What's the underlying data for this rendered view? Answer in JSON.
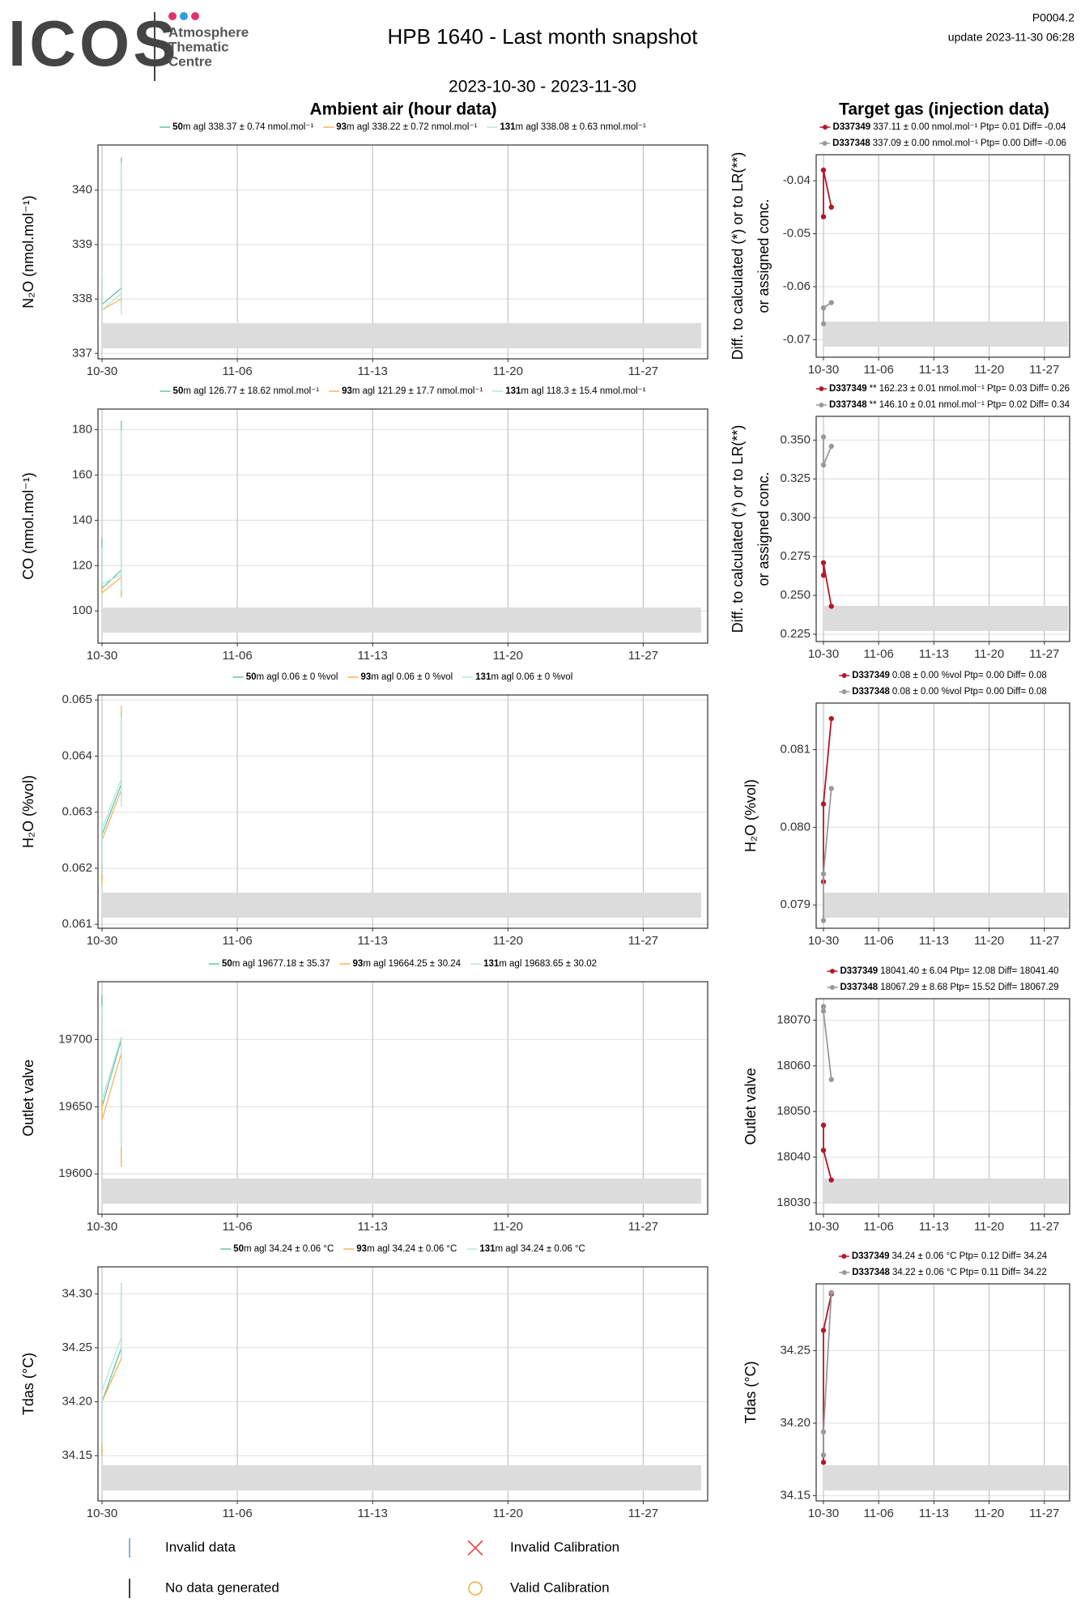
{
  "header": {
    "logo": "ICOS",
    "logo_sub": [
      "Atmosphere",
      "Thematic",
      "Centre"
    ],
    "title": "HPB 1640 - Last month snapshot",
    "code": "P0004.2",
    "update": "update  2023-11-30 06:28",
    "period": "2023-10-30 - 2023-11-30",
    "left_title": "Ambient air (hour data)",
    "right_title": "Target gas (injection data)"
  },
  "chart_data": [
    {
      "type": "line",
      "ylabel": "N₂O (nmol.mol⁻¹)",
      "legend": "top",
      "grid": true,
      "markers": false,
      "xlim": [
        "10-30",
        "11-30"
      ],
      "xticks": [
        "10-30",
        "11-06",
        "11-13",
        "11-20",
        "11-27"
      ],
      "ylim": [
        336.9,
        340.83
      ],
      "yticks": [
        337,
        338,
        339,
        340
      ],
      "x": [
        "10-30",
        "10-30",
        "10-30",
        "10-30",
        "10-31",
        "10-31",
        "10-31",
        "10-31"
      ],
      "series": [
        {
          "name": "50",
          "label": "m agl 338.37 ± 0.74 nmol.mol⁻¹",
          "color": "#66c2a5",
          "values": [
            338.0,
            337.8,
            338.4,
            337.9,
            338.2,
            337.9,
            340.6,
            338.2
          ]
        },
        {
          "name": "93",
          "label": "m agl 338.22 ± 0.72 nmol.mol⁻¹",
          "color": "#f2b55c",
          "values": [
            338.1,
            337.9,
            338.3,
            337.8,
            338.0,
            337.8,
            340.3,
            338.3
          ]
        },
        {
          "name": "131",
          "label": "m agl 338.08 ± 0.63 nmol.mol⁻¹",
          "color": "#b7e6e0",
          "values": [
            337.9,
            338.2,
            338.5,
            337.8,
            338.1,
            337.7,
            340.5,
            338.2
          ]
        }
      ]
    },
    {
      "type": "line",
      "ylabel": "CO (nmol.mol⁻¹)",
      "legend": "top",
      "grid": true,
      "markers": false,
      "xlim": [
        "10-30",
        "11-30"
      ],
      "xticks": [
        "10-30",
        "11-06",
        "11-13",
        "11-20",
        "11-27"
      ],
      "ylim": [
        85.8,
        189.1
      ],
      "yticks": [
        100,
        120,
        140,
        160,
        180
      ],
      "x": [
        "10-30",
        "10-30",
        "10-30",
        "10-30",
        "10-31",
        "10-31",
        "10-31",
        "10-31"
      ],
      "series": [
        {
          "name": "50",
          "label": "m agl 126.77 ± 18.62 nmol.mol⁻¹",
          "color": "#66c2a5",
          "values": [
            120,
            113,
            132,
            110,
            118,
            107,
            184,
            120
          ]
        },
        {
          "name": "93",
          "label": "m agl 121.29 ± 17.7 nmol.mol⁻¹",
          "color": "#f2b55c",
          "values": [
            118,
            110,
            125,
            108,
            115,
            106,
            176,
            118
          ]
        },
        {
          "name": "131",
          "label": "m agl 118.3 ± 15.4 nmol.mol⁻¹",
          "color": "#b7e6e0",
          "values": [
            122,
            115,
            128,
            112,
            116,
            109,
            180,
            121
          ]
        }
      ]
    },
    {
      "type": "line",
      "ylabel": "H₂O (%vol)",
      "legend": "top",
      "grid": true,
      "markers": false,
      "xlim": [
        "10-30",
        "11-30"
      ],
      "xticks": [
        "10-30",
        "11-06",
        "11-13",
        "11-20",
        "11-27"
      ],
      "ylim": [
        0.06093,
        0.06509
      ],
      "yticks": [
        0.061,
        0.062,
        0.063,
        0.064,
        0.065
      ],
      "x": [
        "10-30",
        "10-30",
        "10-30",
        "10-30",
        "10-31",
        "10-31",
        "10-31",
        "10-31"
      ],
      "series": [
        {
          "name": "50",
          "label": "m agl 0.06 ± 0 %vol",
          "color": "#66c2a5",
          "values": [
            0.0618,
            0.0625,
            0.0628,
            0.0626,
            0.0635,
            0.0632,
            0.0648,
            0.0641
          ]
        },
        {
          "name": "93",
          "label": "m agl 0.06 ± 0 %vol",
          "color": "#f2b55c",
          "values": [
            0.0617,
            0.0624,
            0.0627,
            0.0625,
            0.0634,
            0.0633,
            0.0649,
            0.0642
          ]
        },
        {
          "name": "131",
          "label": "m agl 0.06 ± 0 %vol",
          "color": "#b7e6e0",
          "values": [
            0.0619,
            0.0626,
            0.0629,
            0.0627,
            0.0636,
            0.0631,
            0.0647,
            0.064
          ]
        }
      ]
    },
    {
      "type": "line",
      "ylabel": "Outlet valve",
      "legend": "top",
      "grid": true,
      "markers": false,
      "xlim": [
        "10-30",
        "11-30"
      ],
      "xticks": [
        "10-30",
        "11-06",
        "11-13",
        "11-20",
        "11-27"
      ],
      "ylim": [
        19570,
        19743
      ],
      "yticks": [
        19600,
        19650,
        19700
      ],
      "x": [
        "10-30",
        "10-30",
        "10-30",
        "10-30",
        "10-31",
        "10-31",
        "10-31",
        "10-31"
      ],
      "series": [
        {
          "name": "50",
          "label": "m agl 19677.18 ± 35.37",
          "color": "#66c2a5",
          "values": [
            19733,
            19660,
            19720,
            19650,
            19700,
            19610,
            19660,
            19680
          ]
        },
        {
          "name": "93",
          "label": "m agl 19664.25 ± 30.24",
          "color": "#f2b55c",
          "values": [
            19715,
            19655,
            19705,
            19640,
            19690,
            19605,
            19650,
            19665
          ]
        },
        {
          "name": "131",
          "label": "m agl 19683.65 ± 30.02",
          "color": "#b7e6e0",
          "values": [
            19725,
            19665,
            19715,
            19655,
            19702,
            19620,
            19665,
            19682
          ]
        }
      ]
    },
    {
      "type": "line",
      "ylabel": "Tdas (°C)",
      "legend": "top",
      "grid": true,
      "markers": false,
      "xlim": [
        "10-30",
        "11-30"
      ],
      "xticks": [
        "10-30",
        "11-06",
        "11-13",
        "11-20",
        "11-27"
      ],
      "ylim": [
        34.108,
        34.325
      ],
      "yticks": [
        {
          "value": 34.3,
          "label": "34.30"
        },
        34.25,
        {
          "value": 34.2,
          "label": "34.20"
        },
        34.15
      ],
      "x": [
        "10-30",
        "10-30",
        "10-30",
        "10-30",
        "10-31",
        "10-31",
        "10-31",
        "10-31"
      ],
      "series": [
        {
          "name": "50",
          "label": "m agl 34.24 ± 0.06 °C",
          "color": "#66c2a5",
          "values": [
            34.17,
            34.15,
            34.19,
            34.2,
            34.25,
            34.24,
            34.31,
            34.28
          ]
        },
        {
          "name": "93",
          "label": "m agl 34.24 ± 0.06 °C",
          "color": "#f2b55c",
          "values": [
            34.16,
            34.15,
            34.18,
            34.2,
            34.24,
            34.25,
            34.3,
            34.29
          ]
        },
        {
          "name": "131",
          "label": "m agl 34.24 ± 0.06 °C",
          "color": "#b7e6e0",
          "values": [
            34.18,
            34.16,
            34.2,
            34.21,
            34.26,
            34.24,
            34.31,
            34.3
          ]
        }
      ]
    },
    {
      "type": "line",
      "ylabel": [
        "Diff. to calculated (*) or to LR(**)",
        "or assigned conc."
      ],
      "legend": "top",
      "grid": true,
      "markers": true,
      "xlim": [
        "10-30",
        "11-30"
      ],
      "xticks": [
        "10-30",
        "11-06",
        "11-13",
        "11-20",
        "11-27"
      ],
      "ylim": [
        -0.0733,
        -0.0351
      ],
      "yticks": [
        -0.07,
        -0.06,
        -0.05,
        -0.04
      ],
      "x": [
        "10-30",
        "10-30",
        "10-31"
      ],
      "series": [
        {
          "name": "D337349",
          "label": "337.11 ± 0.00 nmol.mol⁻¹ Ptp= 0.01 Diff= -0.04",
          "color": "#b2182b",
          "values": [
            -0.0468,
            -0.038,
            -0.045
          ]
        },
        {
          "name": "D337348",
          "label": "337.09 ± 0.00 nmol.mol⁻¹ Ptp= 0.00 Diff= -0.06",
          "color": "#999999",
          "values": [
            -0.067,
            -0.064,
            -0.063
          ]
        }
      ]
    },
    {
      "type": "line",
      "ylabel": [
        "Diff. to calculated (*) or to LR(**)",
        "or assigned conc."
      ],
      "legend": "top",
      "grid": true,
      "markers": true,
      "xlim": [
        "10-30",
        "11-30"
      ],
      "xticks": [
        "10-30",
        "11-06",
        "11-13",
        "11-20",
        "11-27"
      ],
      "ylim": [
        0.2203,
        0.3653
      ],
      "yticks": [
        0.225,
        {
          "value": 0.25,
          "label": "0.250"
        },
        0.275,
        {
          "value": 0.3,
          "label": "0.300"
        },
        0.325,
        {
          "value": 0.35,
          "label": "0.350"
        }
      ],
      "x": [
        "10-30",
        "10-30",
        "10-31"
      ],
      "series": [
        {
          "name": "D337349",
          "label": "** 162.23 ± 0.01 nmol.mol⁻¹ Ptp= 0.03 Diff= 0.26",
          "color": "#b2182b",
          "values": [
            0.263,
            0.271,
            0.243
          ]
        },
        {
          "name": "D337348",
          "label": "** 146.10 ± 0.01 nmol.mol⁻¹ Ptp= 0.02 Diff= 0.34",
          "color": "#999999",
          "values": [
            0.352,
            0.334,
            0.346
          ]
        }
      ]
    },
    {
      "type": "line",
      "ylabel": "H₂O (%vol)",
      "legend": "top",
      "grid": true,
      "markers": true,
      "xlim": [
        "10-30",
        "11-30"
      ],
      "xticks": [
        "10-30",
        "11-06",
        "11-13",
        "11-20",
        "11-27"
      ],
      "ylim": [
        0.0787,
        0.0816
      ],
      "yticks": [
        0.079,
        {
          "value": 0.08,
          "label": "0.080"
        },
        0.081
      ],
      "x": [
        "10-30",
        "10-30",
        "10-31"
      ],
      "series": [
        {
          "name": "D337349",
          "label": "0.08 ± 0.00 %vol Ptp= 0.00 Diff= 0.08",
          "color": "#b2182b",
          "values": [
            0.0793,
            0.0803,
            0.0814
          ]
        },
        {
          "name": "D337348",
          "label": "0.08 ± 0.00 %vol Ptp= 0.00 Diff= 0.08",
          "color": "#999999",
          "values": [
            0.0788,
            0.0794,
            0.0805
          ]
        }
      ]
    },
    {
      "type": "line",
      "ylabel": "Outlet valve",
      "legend": "top",
      "grid": true,
      "markers": true,
      "xlim": [
        "10-30",
        "11-30"
      ],
      "xticks": [
        "10-30",
        "11-06",
        "11-13",
        "11-20",
        "11-27"
      ],
      "ylim": [
        18027.5,
        18074.7
      ],
      "yticks": [
        18030,
        18040,
        18050,
        18060,
        18070
      ],
      "x": [
        "10-30",
        "10-30",
        "10-31"
      ],
      "series": [
        {
          "name": "D337349",
          "label": "18041.40 ± 6.04  Ptp= 12.08 Diff= 18041.40",
          "color": "#b2182b",
          "values": [
            18047,
            18041.5,
            18035
          ]
        },
        {
          "name": "D337348",
          "label": "18067.29 ± 8.68  Ptp= 15.52 Diff= 18067.29",
          "color": "#999999",
          "values": [
            18073,
            18072,
            18057
          ]
        }
      ]
    },
    {
      "type": "line",
      "ylabel": "Tdas (°C)",
      "legend": "top",
      "grid": true,
      "markers": true,
      "xlim": [
        "10-30",
        "11-30"
      ],
      "xticks": [
        "10-30",
        "11-06",
        "11-13",
        "11-20",
        "11-27"
      ],
      "ylim": [
        34.1464,
        34.296
      ],
      "yticks": [
        34.15,
        {
          "value": 34.2,
          "label": "34.20"
        },
        34.25
      ],
      "x": [
        "10-30",
        "10-30",
        "10-31"
      ],
      "series": [
        {
          "name": "D337349",
          "label": "34.24 ± 0.06 °C Ptp= 0.12 Diff= 34.24",
          "color": "#b2182b",
          "values": [
            34.173,
            34.264,
            34.289
          ]
        },
        {
          "name": "D337348",
          "label": "34.22 ± 0.06 °C Ptp= 0.11 Diff= 34.22",
          "color": "#999999",
          "values": [
            34.178,
            34.194,
            34.29
          ]
        }
      ]
    }
  ],
  "key": [
    "Invalid data",
    "No data generated",
    "Invalid Calibration",
    "Valid Calibration"
  ]
}
